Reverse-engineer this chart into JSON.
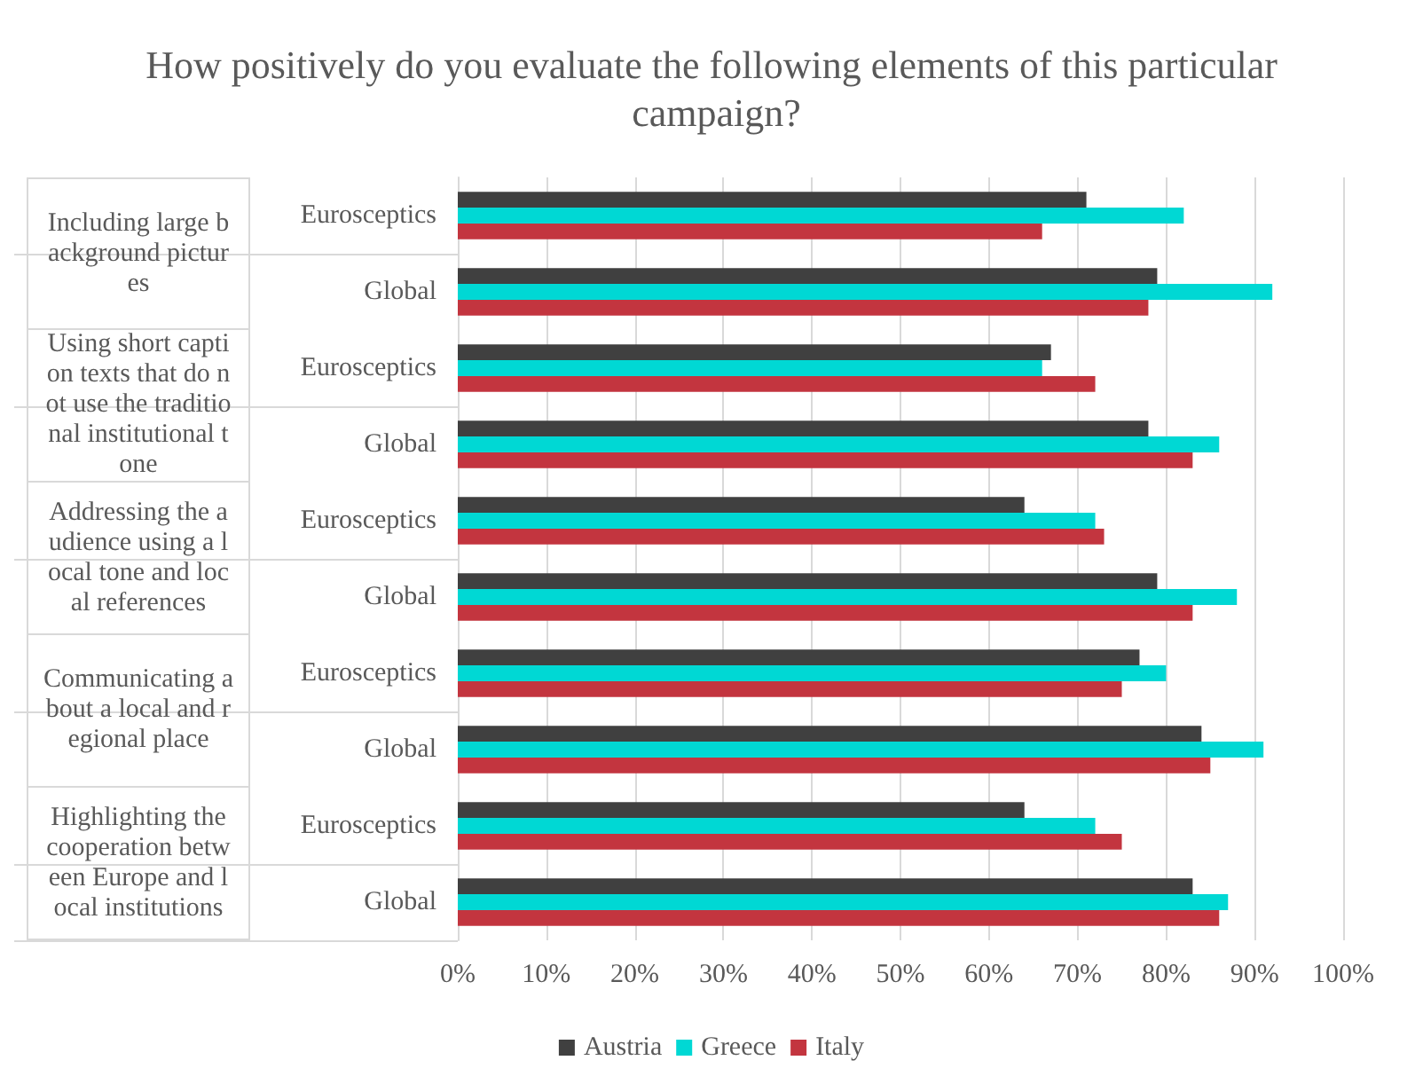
{
  "chart_data": {
    "type": "bar",
    "orientation": "horizontal",
    "title": "How positively do you evaluate the following elements of this particular campaign?",
    "categories": [
      "Eurosceptics",
      "Global",
      "Eurosceptics",
      "Global",
      "Eurosceptics",
      "Global",
      "Eurosceptics",
      "Global",
      "Eurosceptics",
      "Global"
    ],
    "annotations": [
      "Including large background pictures",
      "Using short caption texts that do not use the traditional institutional tone",
      "Addressing the audience using a local tone and local references",
      "Communicating about a local and regional place",
      "Highlighting the cooperation between Europe and local institutions"
    ],
    "series": [
      {
        "name": "Austria",
        "color": "#404040",
        "values": [
          71,
          79,
          67,
          78,
          64,
          79,
          77,
          84,
          64,
          83
        ]
      },
      {
        "name": "Greece",
        "color": "#00d8d4",
        "values": [
          82,
          92,
          66,
          86,
          72,
          88,
          80,
          91,
          72,
          87
        ]
      },
      {
        "name": "Italy",
        "color": "#c3353f",
        "values": [
          66,
          78,
          72,
          83,
          73,
          83,
          75,
          85,
          75,
          86
        ]
      }
    ],
    "xlim": [
      0,
      100
    ],
    "xticks": [
      {
        "value": 0,
        "label": "0%"
      },
      {
        "value": 10,
        "label": "10%"
      },
      {
        "value": 20,
        "label": "20%"
      },
      {
        "value": 30,
        "label": "30%"
      },
      {
        "value": 40,
        "label": "40%"
      },
      {
        "value": 50,
        "label": "50%"
      },
      {
        "value": 60,
        "label": "60%"
      },
      {
        "value": 70,
        "label": "70%"
      },
      {
        "value": 80,
        "label": "80%"
      },
      {
        "value": 90,
        "label": "90%"
      },
      {
        "value": 100,
        "label": "100%"
      }
    ],
    "grid": "x",
    "legend": "bottom"
  }
}
